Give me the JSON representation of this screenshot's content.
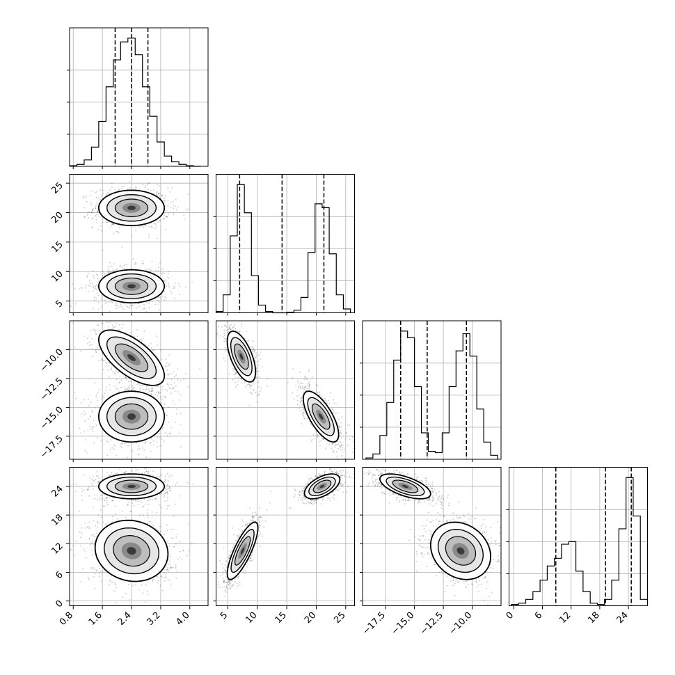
{
  "chart_data": {
    "type": "corner",
    "grid": true,
    "parameters": [
      {
        "range": [
          0.7,
          4.5
        ],
        "ticks": [
          0.8,
          1.6,
          2.4,
          3.2,
          4.0
        ],
        "tick_labels": [
          "0.8",
          "1.6",
          "2.4",
          "3.2",
          "4.0"
        ],
        "quantiles": [
          1.95,
          2.4,
          2.85
        ],
        "histogram": {
          "edges": [
            0.7,
            0.9,
            1.1,
            1.3,
            1.5,
            1.7,
            1.9,
            2.1,
            2.3,
            2.5,
            2.7,
            2.9,
            3.1,
            3.3,
            3.5,
            3.7,
            3.9,
            4.1,
            4.3
          ],
          "counts": [
            0.005,
            0.015,
            0.05,
            0.15,
            0.35,
            0.62,
            0.83,
            0.97,
            1.0,
            0.87,
            0.62,
            0.39,
            0.19,
            0.08,
            0.035,
            0.015,
            0.005,
            0.0
          ]
        }
      },
      {
        "range": [
          3.0,
          26.5
        ],
        "ticks": [
          5,
          10,
          15,
          20,
          25
        ],
        "tick_labels": [
          "5",
          "10",
          "15",
          "20",
          "25"
        ],
        "quantiles": [
          7.0,
          14.2,
          21.3
        ],
        "histogram": {
          "edges": [
            3.0,
            4.2,
            5.4,
            6.6,
            7.8,
            9.0,
            10.2,
            11.4,
            12.6,
            13.8,
            15.0,
            16.2,
            17.4,
            18.6,
            19.8,
            21.0,
            22.2,
            23.4,
            24.6,
            25.8
          ],
          "counts": [
            0.01,
            0.14,
            0.6,
            1.0,
            0.78,
            0.29,
            0.06,
            0.01,
            0.0,
            0.0,
            0.005,
            0.02,
            0.12,
            0.47,
            0.85,
            0.82,
            0.46,
            0.14,
            0.03
          ]
        }
      },
      {
        "range": [
          -19.5,
          -7.5
        ],
        "ticks": [
          -17.5,
          -15.0,
          -12.5,
          -10.0
        ],
        "tick_labels": [
          "−17.5",
          "−15.0",
          "−12.5",
          "−10.0"
        ],
        "quantiles": [
          -16.2,
          -13.9,
          -10.5
        ],
        "histogram": {
          "edges": [
            -19.2,
            -18.6,
            -18.0,
            -17.4,
            -16.8,
            -16.2,
            -15.6,
            -15.0,
            -14.4,
            -13.8,
            -13.2,
            -12.6,
            -12.0,
            -11.4,
            -10.8,
            -10.2,
            -9.6,
            -9.0,
            -8.4,
            -7.8
          ],
          "counts": [
            0.01,
            0.04,
            0.18,
            0.43,
            0.75,
            0.97,
            0.92,
            0.55,
            0.2,
            0.06,
            0.05,
            0.2,
            0.55,
            0.82,
            0.95,
            0.78,
            0.38,
            0.13,
            0.03
          ]
        }
      },
      {
        "range": [
          -1.0,
          28.0
        ],
        "ticks": [
          0,
          6,
          12,
          18,
          24
        ],
        "tick_labels": [
          "0",
          "6",
          "12",
          "18",
          "24"
        ],
        "quantiles": [
          8.8,
          19.2,
          24.6
        ],
        "histogram": {
          "edges": [
            -0.5,
            1.0,
            2.5,
            4.0,
            5.5,
            7.0,
            8.5,
            10.0,
            11.5,
            13.0,
            14.5,
            16.0,
            17.5,
            19.0,
            20.5,
            22.0,
            23.5,
            25.0,
            26.5,
            28.0
          ],
          "counts": [
            0.01,
            0.02,
            0.05,
            0.11,
            0.2,
            0.31,
            0.37,
            0.48,
            0.5,
            0.27,
            0.11,
            0.02,
            0.01,
            0.05,
            0.2,
            0.6,
            1.0,
            0.7,
            0.05
          ]
        }
      }
    ],
    "pairs": [
      {
        "x": 0,
        "y": 1,
        "clusters": [
          {
            "mean": [
              2.4,
              20.8
            ],
            "sd": [
              0.45,
              1.5
            ],
            "corr": 0.0,
            "weight": 0.5
          },
          {
            "mean": [
              2.4,
              7.5
            ],
            "sd": [
              0.45,
              1.4
            ],
            "corr": 0.0,
            "weight": 0.5
          }
        ]
      },
      {
        "x": 0,
        "y": 2,
        "clusters": [
          {
            "mean": [
              2.4,
              -10.7
            ],
            "sd": [
              0.45,
              1.2
            ],
            "corr": -0.65,
            "weight": 0.5
          },
          {
            "mean": [
              2.4,
              -15.8
            ],
            "sd": [
              0.45,
              1.1
            ],
            "corr": 0.0,
            "weight": 0.5
          }
        ]
      },
      {
        "x": 0,
        "y": 3,
        "clusters": [
          {
            "mean": [
              2.4,
              24.0
            ],
            "sd": [
              0.45,
              1.3
            ],
            "corr": 0.0,
            "weight": 0.5
          },
          {
            "mean": [
              2.4,
              10.5
            ],
            "sd": [
              0.5,
              3.2
            ],
            "corr": -0.1,
            "weight": 0.5
          }
        ]
      },
      {
        "x": 1,
        "y": 2,
        "clusters": [
          {
            "mean": [
              7.3,
              -10.6
            ],
            "sd": [
              1.2,
              1.1
            ],
            "corr": -0.6,
            "weight": 0.5
          },
          {
            "mean": [
              20.8,
              -15.8
            ],
            "sd": [
              1.5,
              1.1
            ],
            "corr": -0.7,
            "weight": 0.5
          }
        ]
      },
      {
        "x": 1,
        "y": 3,
        "clusters": [
          {
            "mean": [
              21.0,
              24.0
            ],
            "sd": [
              1.5,
              1.3
            ],
            "corr": 0.55,
            "weight": 0.5
          },
          {
            "mean": [
              7.5,
              10.5
            ],
            "sd": [
              1.3,
              3.0
            ],
            "corr": 0.8,
            "weight": 0.5
          }
        ]
      },
      {
        "x": 2,
        "y": 3,
        "clusters": [
          {
            "mean": [
              -15.8,
              24.0
            ],
            "sd": [
              1.1,
              1.3
            ],
            "corr": -0.6,
            "weight": 0.5
          },
          {
            "mean": [
              -11.0,
              10.5
            ],
            "sd": [
              1.3,
              3.0
            ],
            "corr": -0.2,
            "weight": 0.5
          }
        ]
      }
    ]
  }
}
